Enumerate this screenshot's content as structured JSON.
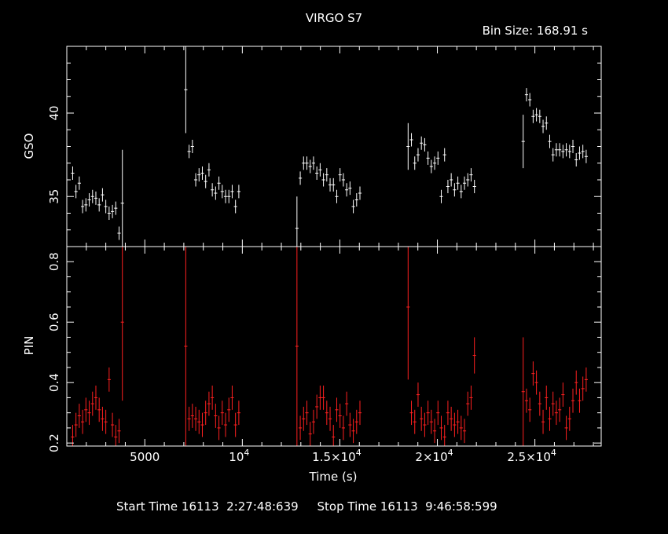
{
  "title": "VIRGO S7",
  "bin_size": "Bin Size: 168.91 s",
  "footer": {
    "start_label": "Start Time",
    "start_value": "16113  2:27:48:639",
    "stop_label": "Stop Time",
    "stop_value": "16113  9:46:58:599"
  },
  "colors": {
    "gso": "#ffffff",
    "pin": "#ff2020",
    "axes": "#ffffff",
    "background": "#000000"
  },
  "chart_data": [
    {
      "type": "scatter",
      "panel": "top",
      "ylabel": "GSO",
      "xlim": [
        1000,
        28400
      ],
      "ylim": [
        32,
        44
      ],
      "yticks": [
        {
          "v": 35,
          "label": "35"
        },
        {
          "v": 40,
          "label": "40"
        }
      ],
      "series": [
        {
          "color": "#ffffff",
          "points": [
            [
              1300,
              36.4,
              0.4
            ],
            [
              1470,
              35.3,
              0.4
            ],
            [
              1640,
              35.8,
              0.4
            ],
            [
              1810,
              34.4,
              0.4
            ],
            [
              1980,
              34.5,
              0.4
            ],
            [
              2150,
              34.8,
              0.4
            ],
            [
              2320,
              35.0,
              0.4
            ],
            [
              2490,
              34.9,
              0.4
            ],
            [
              2660,
              34.5,
              0.4
            ],
            [
              2830,
              35.1,
              0.4
            ],
            [
              3000,
              34.4,
              0.4
            ],
            [
              3170,
              34.0,
              0.4
            ],
            [
              3340,
              34.1,
              0.4
            ],
            [
              3510,
              34.3,
              0.4
            ],
            [
              3680,
              32.8,
              0.4
            ],
            [
              3850,
              34.6,
              3.2
            ],
            [
              7100,
              41.4,
              2.6
            ],
            [
              7270,
              37.7,
              0.4
            ],
            [
              7440,
              38.0,
              0.4
            ],
            [
              7610,
              36.0,
              0.4
            ],
            [
              7780,
              36.3,
              0.4
            ],
            [
              7950,
              36.4,
              0.4
            ],
            [
              8120,
              35.9,
              0.4
            ],
            [
              8290,
              36.6,
              0.4
            ],
            [
              8460,
              35.4,
              0.4
            ],
            [
              8630,
              35.2,
              0.4
            ],
            [
              8800,
              35.8,
              0.4
            ],
            [
              8970,
              35.3,
              0.4
            ],
            [
              9140,
              35.0,
              0.4
            ],
            [
              9310,
              35.0,
              0.4
            ],
            [
              9480,
              35.3,
              0.4
            ],
            [
              9650,
              34.4,
              0.4
            ],
            [
              9820,
              35.3,
              0.4
            ],
            [
              12800,
              33.1,
              1.9
            ],
            [
              12970,
              36.1,
              0.4
            ],
            [
              13140,
              37.0,
              0.4
            ],
            [
              13310,
              37.0,
              0.4
            ],
            [
              13480,
              36.8,
              0.4
            ],
            [
              13650,
              37.0,
              0.4
            ],
            [
              13820,
              36.4,
              0.4
            ],
            [
              13990,
              36.6,
              0.4
            ],
            [
              14160,
              36.0,
              0.4
            ],
            [
              14330,
              36.3,
              0.4
            ],
            [
              14500,
              35.7,
              0.4
            ],
            [
              14670,
              35.7,
              0.4
            ],
            [
              14840,
              35.0,
              0.4
            ],
            [
              15010,
              36.3,
              0.4
            ],
            [
              15180,
              36.0,
              0.4
            ],
            [
              15350,
              35.4,
              0.4
            ],
            [
              15520,
              35.5,
              0.4
            ],
            [
              15690,
              34.4,
              0.4
            ],
            [
              15860,
              34.8,
              0.4
            ],
            [
              16030,
              35.2,
              0.4
            ],
            [
              18500,
              38.0,
              1.4
            ],
            [
              18670,
              38.4,
              0.4
            ],
            [
              18840,
              37.0,
              0.4
            ],
            [
              19010,
              37.5,
              0.4
            ],
            [
              19180,
              38.2,
              0.4
            ],
            [
              19350,
              38.1,
              0.4
            ],
            [
              19520,
              37.3,
              0.4
            ],
            [
              19690,
              36.8,
              0.4
            ],
            [
              19860,
              37.0,
              0.4
            ],
            [
              20030,
              37.3,
              0.4
            ],
            [
              20200,
              35.0,
              0.4
            ],
            [
              20370,
              37.5,
              0.4
            ],
            [
              20540,
              35.6,
              0.4
            ],
            [
              20710,
              36.0,
              0.4
            ],
            [
              20880,
              35.4,
              0.4
            ],
            [
              21050,
              35.8,
              0.4
            ],
            [
              21220,
              35.3,
              0.4
            ],
            [
              21390,
              35.8,
              0.4
            ],
            [
              21560,
              36.0,
              0.4
            ],
            [
              21730,
              36.3,
              0.4
            ],
            [
              21900,
              35.6,
              0.4
            ],
            [
              24400,
              38.3,
              1.6
            ],
            [
              24570,
              41.1,
              0.4
            ],
            [
              24740,
              40.8,
              0.4
            ],
            [
              24910,
              39.8,
              0.4
            ],
            [
              25080,
              39.9,
              0.4
            ],
            [
              25250,
              39.8,
              0.4
            ],
            [
              25420,
              39.2,
              0.4
            ],
            [
              25590,
              39.4,
              0.4
            ],
            [
              25760,
              38.3,
              0.4
            ],
            [
              25930,
              37.5,
              0.4
            ],
            [
              26100,
              37.8,
              0.4
            ],
            [
              26270,
              37.8,
              0.4
            ],
            [
              26440,
              37.7,
              0.4
            ],
            [
              26610,
              37.8,
              0.4
            ],
            [
              26780,
              37.7,
              0.4
            ],
            [
              26950,
              38.0,
              0.4
            ],
            [
              27120,
              37.2,
              0.4
            ],
            [
              27290,
              37.6,
              0.4
            ],
            [
              27460,
              37.7,
              0.4
            ],
            [
              27630,
              37.4,
              0.4
            ]
          ]
        }
      ]
    },
    {
      "type": "scatter",
      "panel": "bottom",
      "xlabel": "Time (s)",
      "ylabel": "PIN",
      "xlim": [
        1000,
        28400
      ],
      "ylim": [
        0.19,
        0.85
      ],
      "xticks": [
        {
          "v": 5000,
          "base": "5000",
          "exp": ""
        },
        {
          "v": 10000,
          "base": "10",
          "exp": "4"
        },
        {
          "v": 15000,
          "base": "1.5×10",
          "exp": "4"
        },
        {
          "v": 20000,
          "base": "2×10",
          "exp": "4"
        },
        {
          "v": 25000,
          "base": "2.5×10",
          "exp": "4"
        }
      ],
      "yticks": [
        {
          "v": 0.2,
          "label": "0.2"
        },
        {
          "v": 0.4,
          "label": "0.4"
        },
        {
          "v": 0.6,
          "label": "0.6"
        },
        {
          "v": 0.8,
          "label": "0.8"
        }
      ],
      "series": [
        {
          "color": "#ff2020",
          "points": [
            [
              1300,
              0.22,
              0.04
            ],
            [
              1470,
              0.26,
              0.04
            ],
            [
              1640,
              0.29,
              0.04
            ],
            [
              1810,
              0.27,
              0.04
            ],
            [
              1980,
              0.31,
              0.04
            ],
            [
              2150,
              0.3,
              0.04
            ],
            [
              2320,
              0.33,
              0.04
            ],
            [
              2490,
              0.35,
              0.04
            ],
            [
              2660,
              0.31,
              0.04
            ],
            [
              2830,
              0.28,
              0.04
            ],
            [
              3000,
              0.27,
              0.04
            ],
            [
              3170,
              0.41,
              0.04
            ],
            [
              3340,
              0.26,
              0.04
            ],
            [
              3510,
              0.22,
              0.04
            ],
            [
              3680,
              0.24,
              0.04
            ],
            [
              3850,
              0.6,
              0.26
            ],
            [
              7100,
              0.52,
              0.33
            ],
            [
              7270,
              0.28,
              0.04
            ],
            [
              7440,
              0.29,
              0.04
            ],
            [
              7610,
              0.28,
              0.04
            ],
            [
              7780,
              0.27,
              0.04
            ],
            [
              7950,
              0.26,
              0.04
            ],
            [
              8120,
              0.3,
              0.04
            ],
            [
              8290,
              0.33,
              0.04
            ],
            [
              8460,
              0.35,
              0.04
            ],
            [
              8630,
              0.29,
              0.04
            ],
            [
              8800,
              0.25,
              0.04
            ],
            [
              8970,
              0.3,
              0.04
            ],
            [
              9140,
              0.26,
              0.04
            ],
            [
              9310,
              0.31,
              0.04
            ],
            [
              9480,
              0.35,
              0.04
            ],
            [
              9650,
              0.26,
              0.04
            ],
            [
              9820,
              0.3,
              0.04
            ],
            [
              12800,
              0.52,
              0.33
            ],
            [
              12970,
              0.25,
              0.04
            ],
            [
              13140,
              0.28,
              0.04
            ],
            [
              13310,
              0.3,
              0.04
            ],
            [
              13480,
              0.23,
              0.04
            ],
            [
              13650,
              0.27,
              0.04
            ],
            [
              13820,
              0.32,
              0.04
            ],
            [
              13990,
              0.35,
              0.04
            ],
            [
              14160,
              0.35,
              0.04
            ],
            [
              14330,
              0.3,
              0.04
            ],
            [
              14500,
              0.28,
              0.04
            ],
            [
              14670,
              0.22,
              0.04
            ],
            [
              14840,
              0.31,
              0.04
            ],
            [
              15010,
              0.29,
              0.04
            ],
            [
              15180,
              0.25,
              0.04
            ],
            [
              15350,
              0.33,
              0.04
            ],
            [
              15520,
              0.26,
              0.04
            ],
            [
              15690,
              0.24,
              0.04
            ],
            [
              15860,
              0.27,
              0.04
            ],
            [
              16030,
              0.3,
              0.04
            ],
            [
              18500,
              0.65,
              0.24
            ],
            [
              18670,
              0.3,
              0.04
            ],
            [
              18840,
              0.27,
              0.04
            ],
            [
              19010,
              0.36,
              0.04
            ],
            [
              19180,
              0.28,
              0.04
            ],
            [
              19350,
              0.26,
              0.04
            ],
            [
              19520,
              0.3,
              0.04
            ],
            [
              19690,
              0.27,
              0.04
            ],
            [
              19860,
              0.24,
              0.04
            ],
            [
              20030,
              0.3,
              0.04
            ],
            [
              20200,
              0.25,
              0.04
            ],
            [
              20370,
              0.22,
              0.04
            ],
            [
              20540,
              0.3,
              0.04
            ],
            [
              20710,
              0.28,
              0.04
            ],
            [
              20880,
              0.26,
              0.04
            ],
            [
              21050,
              0.27,
              0.04
            ],
            [
              21220,
              0.25,
              0.04
            ],
            [
              21390,
              0.24,
              0.04
            ],
            [
              21560,
              0.33,
              0.04
            ],
            [
              21730,
              0.35,
              0.04
            ],
            [
              21900,
              0.49,
              0.06
            ],
            [
              24400,
              0.37,
              0.18
            ],
            [
              24570,
              0.34,
              0.04
            ],
            [
              24740,
              0.31,
              0.04
            ],
            [
              24910,
              0.43,
              0.04
            ],
            [
              25080,
              0.4,
              0.04
            ],
            [
              25250,
              0.33,
              0.04
            ],
            [
              25420,
              0.27,
              0.04
            ],
            [
              25590,
              0.35,
              0.04
            ],
            [
              25760,
              0.28,
              0.04
            ],
            [
              25930,
              0.33,
              0.04
            ],
            [
              26100,
              0.3,
              0.04
            ],
            [
              26270,
              0.31,
              0.04
            ],
            [
              26440,
              0.36,
              0.04
            ],
            [
              26610,
              0.25,
              0.04
            ],
            [
              26780,
              0.28,
              0.04
            ],
            [
              26950,
              0.34,
              0.04
            ],
            [
              27120,
              0.4,
              0.04
            ],
            [
              27290,
              0.34,
              0.04
            ],
            [
              27460,
              0.38,
              0.04
            ],
            [
              27630,
              0.41,
              0.04
            ]
          ]
        }
      ]
    }
  ]
}
